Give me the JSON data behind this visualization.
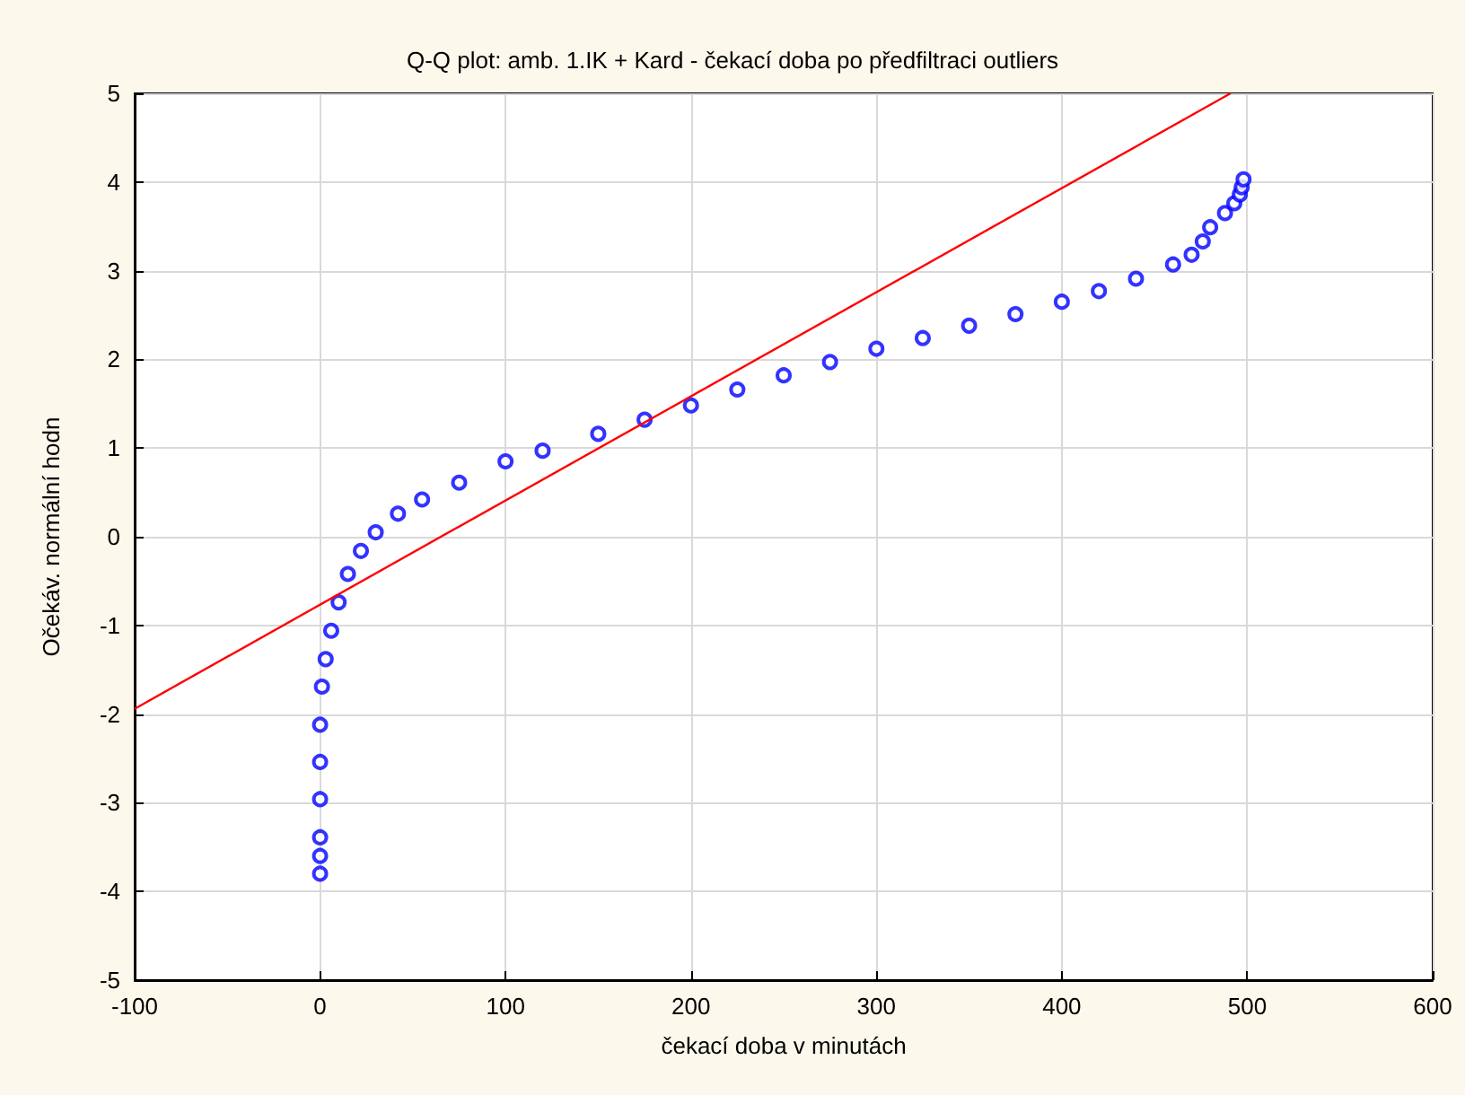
{
  "chart_data": {
    "type": "scatter",
    "title": "Q-Q plot: amb. 1.IK + Kard - čekací doba po předfiltraci outliers",
    "xlabel": "čekací doba v minutách",
    "ylabel": "Očekáv. normální hodn",
    "xlim": [
      -100,
      600
    ],
    "xticks": [
      -100,
      0,
      100,
      200,
      300,
      400,
      500,
      600
    ],
    "ylim": [
      -5,
      5
    ],
    "yticks": [
      -5,
      -4,
      -3,
      -2,
      -1,
      0,
      1,
      2,
      3,
      4,
      5
    ],
    "grid": true,
    "marker": "circle",
    "series": [
      {
        "color": "#0000ff",
        "x": [
          0,
          0,
          0,
          0,
          0,
          0,
          1,
          3,
          6,
          10,
          15,
          22,
          30,
          42,
          55,
          75,
          100,
          120,
          150,
          175,
          200,
          225,
          250,
          275,
          300,
          325,
          350,
          375,
          400,
          420,
          440,
          460,
          470,
          476,
          480,
          488,
          493,
          496,
          497,
          498
        ],
        "values": [
          -3.8,
          -3.6,
          -3.39,
          -2.96,
          -2.54,
          -2.12,
          -1.69,
          -1.38,
          -1.06,
          -0.74,
          -0.42,
          -0.16,
          0.05,
          0.26,
          0.42,
          0.61,
          0.85,
          0.97,
          1.16,
          1.32,
          1.48,
          1.66,
          1.82,
          1.97,
          2.12,
          2.24,
          2.38,
          2.51,
          2.65,
          2.77,
          2.91,
          3.07,
          3.18,
          3.33,
          3.49,
          3.65,
          3.76,
          3.86,
          3.94,
          4.03
        ]
      },
      {
        "type": "line",
        "color": "#ff0000",
        "marker": "none",
        "x": [
          -100,
          491
        ],
        "values": [
          -1.94,
          5
        ]
      }
    ]
  }
}
